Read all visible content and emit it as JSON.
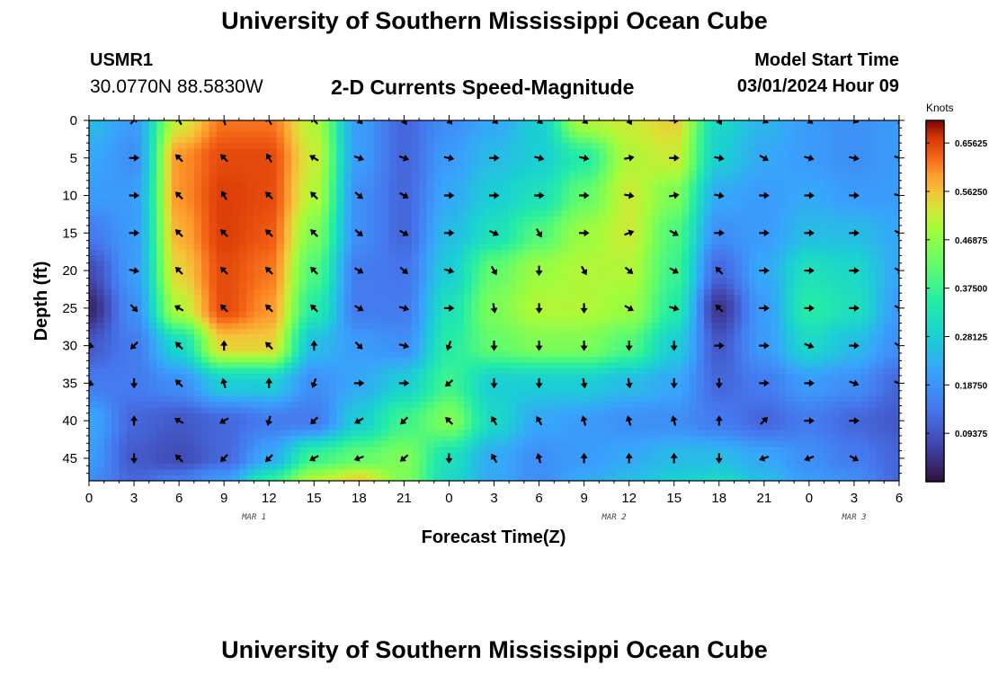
{
  "header": {
    "title": "University of Southern Mississippi Ocean Cube",
    "station_id": "USMR1",
    "station_coords": "30.0770N  88.5830W",
    "plot_title": "2-D Currents Speed-Magnitude",
    "model_start_label": "Model Start Time",
    "model_start_value": "03/01/2024 Hour 09"
  },
  "footer": {
    "title": "University of Southern Mississippi Ocean Cube"
  },
  "chart_data": {
    "type": "heatmap",
    "title": "2-D Currents Speed-Magnitude",
    "xlabel": "Forecast Time(Z)",
    "ylabel": "Depth (ft)",
    "colorbar_label": "Knots",
    "x_range_hours": [
      0,
      54
    ],
    "x_tick_labels": [
      "0",
      "3",
      "6",
      "9",
      "12",
      "15",
      "18",
      "21",
      "0",
      "3",
      "6",
      "9",
      "12",
      "15",
      "18",
      "21",
      "0",
      "3",
      "6"
    ],
    "date_labels": [
      {
        "label": "MAR 1",
        "hour": 11
      },
      {
        "label": "MAR 2",
        "hour": 35
      },
      {
        "label": "MAR 3",
        "hour": 51
      }
    ],
    "ylim": [
      0,
      48
    ],
    "y_ticks": [
      0,
      5,
      10,
      15,
      20,
      25,
      30,
      35,
      40,
      45
    ],
    "colorbar_ticks": [
      "0.65625",
      "0.56250",
      "0.46875",
      "0.37500",
      "0.28125",
      "0.18750",
      "0.09375"
    ],
    "colorbar_tick_values": [
      0.65625,
      0.5625,
      0.46875,
      0.375,
      0.28125,
      0.1875,
      0.09375
    ],
    "color_range": [
      0,
      0.7
    ],
    "grid_hours": [
      0,
      3,
      6,
      9,
      12,
      15,
      18,
      21,
      24,
      27,
      30,
      33,
      36,
      39,
      42,
      45,
      48,
      51,
      54
    ],
    "grid_depths": [
      0,
      5,
      10,
      15,
      20,
      25,
      30,
      35,
      40,
      45,
      48
    ],
    "speed_knots": [
      [
        0.25,
        0.2,
        0.52,
        0.62,
        0.62,
        0.5,
        0.2,
        0.12,
        0.18,
        0.22,
        0.28,
        0.5,
        0.52,
        0.55,
        0.3,
        0.24,
        0.2,
        0.18,
        0.2
      ],
      [
        0.22,
        0.18,
        0.6,
        0.65,
        0.65,
        0.52,
        0.2,
        0.12,
        0.2,
        0.25,
        0.28,
        0.35,
        0.5,
        0.52,
        0.28,
        0.22,
        0.2,
        0.18,
        0.2
      ],
      [
        0.2,
        0.2,
        0.6,
        0.66,
        0.65,
        0.5,
        0.18,
        0.12,
        0.22,
        0.28,
        0.32,
        0.42,
        0.52,
        0.45,
        0.22,
        0.2,
        0.22,
        0.2,
        0.2
      ],
      [
        0.15,
        0.2,
        0.58,
        0.66,
        0.64,
        0.45,
        0.18,
        0.12,
        0.25,
        0.32,
        0.4,
        0.48,
        0.52,
        0.4,
        0.18,
        0.2,
        0.25,
        0.25,
        0.22
      ],
      [
        0.08,
        0.2,
        0.55,
        0.65,
        0.62,
        0.4,
        0.15,
        0.14,
        0.28,
        0.42,
        0.48,
        0.5,
        0.5,
        0.38,
        0.12,
        0.22,
        0.32,
        0.3,
        0.22
      ],
      [
        0.03,
        0.18,
        0.5,
        0.65,
        0.6,
        0.35,
        0.15,
        0.15,
        0.32,
        0.45,
        0.5,
        0.5,
        0.48,
        0.35,
        0.05,
        0.2,
        0.35,
        0.32,
        0.2
      ],
      [
        0.1,
        0.15,
        0.3,
        0.55,
        0.55,
        0.25,
        0.2,
        0.18,
        0.35,
        0.42,
        0.45,
        0.45,
        0.4,
        0.28,
        0.1,
        0.2,
        0.3,
        0.25,
        0.18
      ],
      [
        0.15,
        0.15,
        0.18,
        0.28,
        0.28,
        0.18,
        0.22,
        0.28,
        0.38,
        0.28,
        0.28,
        0.28,
        0.25,
        0.22,
        0.12,
        0.15,
        0.2,
        0.18,
        0.12
      ],
      [
        0.22,
        0.12,
        0.1,
        0.12,
        0.15,
        0.15,
        0.28,
        0.38,
        0.45,
        0.3,
        0.22,
        0.2,
        0.18,
        0.18,
        0.15,
        0.12,
        0.15,
        0.12,
        0.1
      ],
      [
        0.2,
        0.1,
        0.08,
        0.12,
        0.22,
        0.38,
        0.42,
        0.45,
        0.32,
        0.22,
        0.18,
        0.2,
        0.22,
        0.25,
        0.25,
        0.22,
        0.18,
        0.15,
        0.12
      ],
      [
        0.18,
        0.12,
        0.15,
        0.2,
        0.35,
        0.5,
        0.55,
        0.45,
        0.3,
        0.22,
        0.18,
        0.22,
        0.25,
        0.28,
        0.3,
        0.25,
        0.2,
        0.18,
        0.12
      ]
    ],
    "vectors": [
      {
        "depth": 0,
        "angles": [
          null,
          45,
          120,
          105,
          120,
          135,
          315,
          300,
          310,
          320,
          315,
          320,
          300,
          0,
          300,
          330,
          320,
          340,
          330
        ]
      },
      {
        "depth": 5,
        "angles": [
          null,
          0,
          135,
          135,
          120,
          150,
          340,
          340,
          350,
          0,
          345,
          350,
          10,
          0,
          350,
          330,
          345,
          350,
          340
        ]
      },
      {
        "depth": 10,
        "angles": [
          null,
          0,
          135,
          120,
          135,
          135,
          320,
          330,
          0,
          0,
          0,
          0,
          350,
          10,
          350,
          0,
          0,
          0,
          345
        ]
      },
      {
        "depth": 15,
        "angles": [
          null,
          0,
          135,
          135,
          135,
          135,
          320,
          330,
          0,
          335,
          300,
          0,
          20,
          330,
          0,
          0,
          0,
          0,
          330
        ]
      },
      {
        "depth": 20,
        "angles": [
          null,
          350,
          135,
          135,
          135,
          135,
          330,
          320,
          345,
          300,
          270,
          300,
          320,
          330,
          135,
          0,
          0,
          0,
          330
        ]
      },
      {
        "depth": 25,
        "angles": [
          null,
          315,
          150,
          135,
          135,
          135,
          330,
          345,
          0,
          280,
          270,
          270,
          330,
          345,
          135,
          0,
          0,
          0,
          330
        ]
      },
      {
        "depth": 30,
        "angles": [
          345,
          225,
          135,
          90,
          135,
          90,
          315,
          345,
          250,
          270,
          270,
          270,
          270,
          270,
          0,
          0,
          340,
          0,
          330
        ]
      },
      {
        "depth": 35,
        "angles": [
          340,
          270,
          135,
          105,
          90,
          250,
          0,
          0,
          220,
          270,
          270,
          280,
          280,
          270,
          270,
          0,
          0,
          340,
          340
        ]
      },
      {
        "depth": 40,
        "angles": [
          null,
          90,
          150,
          210,
          255,
          225,
          210,
          225,
          135,
          120,
          120,
          105,
          105,
          105,
          90,
          45,
          0,
          0,
          null
        ]
      },
      {
        "depth": 45,
        "angles": [
          null,
          270,
          135,
          225,
          225,
          210,
          200,
          220,
          270,
          120,
          105,
          90,
          90,
          90,
          270,
          200,
          200,
          330,
          null
        ]
      }
    ]
  }
}
